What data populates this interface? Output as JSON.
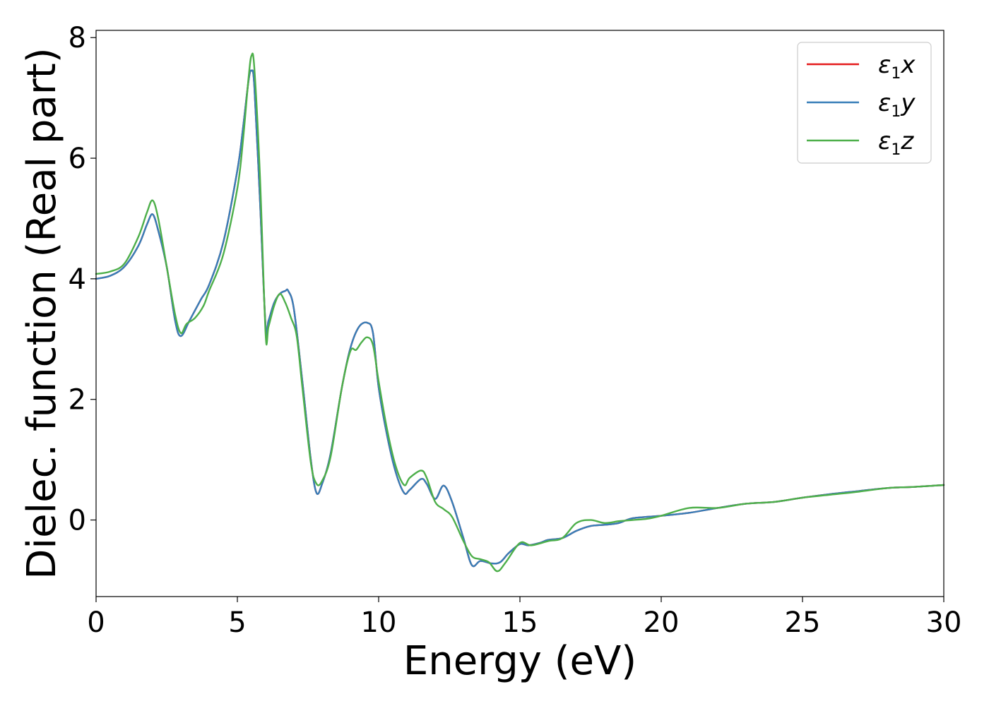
{
  "chart_data": {
    "type": "line",
    "title": "",
    "xlabel": "Energy (eV)",
    "ylabel": "Dielec. function (Real part)",
    "xlim": [
      0,
      30
    ],
    "ylim": [
      -1.27,
      8.12
    ],
    "xticks": [
      0,
      5,
      10,
      15,
      20,
      25,
      30
    ],
    "yticks": [
      0,
      2,
      4,
      6,
      8
    ],
    "xtick_labels": [
      "0",
      "5",
      "10",
      "15",
      "20",
      "25",
      "30"
    ],
    "ytick_labels": [
      "0",
      "2",
      "4",
      "6",
      "8"
    ],
    "grid": false,
    "legend_position": "top-right",
    "series": [
      {
        "name": "ε₁x",
        "legend_main": "ε",
        "legend_sub": "1",
        "legend_suffix": "x",
        "color": "#e41a1c",
        "x": [
          0,
          0.5,
          1.0,
          1.5,
          1.8,
          2.0,
          2.2,
          2.5,
          2.8,
          3.0,
          3.3,
          3.7,
          4.0,
          4.5,
          5.0,
          5.2,
          5.4,
          5.5,
          5.6,
          5.8,
          6.0,
          6.1,
          6.3,
          6.5,
          6.7,
          6.8,
          7.0,
          7.3,
          7.6,
          7.8,
          8.0,
          8.3,
          8.7,
          9.0,
          9.3,
          9.6,
          9.8,
          10.0,
          10.3,
          10.6,
          10.9,
          11.1,
          11.5,
          11.7,
          12.0,
          12.3,
          12.6,
          13.0,
          13.3,
          13.6,
          14.0,
          14.3,
          14.6,
          15.0,
          15.3,
          15.7,
          16.0,
          16.5,
          17.0,
          17.5,
          18.0,
          18.5,
          19.0,
          20.0,
          21.0,
          22.0,
          23.0,
          24.0,
          25.0,
          26.0,
          27.0,
          28.0,
          29.0,
          30.0
        ],
        "y": [
          4.0,
          4.05,
          4.2,
          4.55,
          4.9,
          5.07,
          4.8,
          4.2,
          3.3,
          3.05,
          3.3,
          3.65,
          3.9,
          4.6,
          5.8,
          6.5,
          7.3,
          7.45,
          7.2,
          5.3,
          3.2,
          3.3,
          3.6,
          3.75,
          3.8,
          3.8,
          3.5,
          2.3,
          1.0,
          0.45,
          0.6,
          1.1,
          2.2,
          2.85,
          3.2,
          3.27,
          3.1,
          2.2,
          1.4,
          0.8,
          0.45,
          0.5,
          0.68,
          0.6,
          0.35,
          0.57,
          0.3,
          -0.3,
          -0.75,
          -0.68,
          -0.72,
          -0.7,
          -0.55,
          -0.4,
          -0.42,
          -0.38,
          -0.33,
          -0.3,
          -0.18,
          -0.1,
          -0.08,
          -0.05,
          0.03,
          0.07,
          0.12,
          0.2,
          0.27,
          0.3,
          0.37,
          0.43,
          0.48,
          0.53,
          0.55,
          0.58
        ]
      },
      {
        "name": "ε₁y",
        "legend_main": "ε",
        "legend_sub": "1",
        "legend_suffix": "y",
        "color": "#377eb8",
        "x": [
          0,
          0.5,
          1.0,
          1.5,
          1.8,
          2.0,
          2.2,
          2.5,
          2.8,
          3.0,
          3.3,
          3.7,
          4.0,
          4.5,
          5.0,
          5.2,
          5.4,
          5.5,
          5.6,
          5.8,
          6.0,
          6.1,
          6.3,
          6.5,
          6.7,
          6.8,
          7.0,
          7.3,
          7.6,
          7.8,
          8.0,
          8.3,
          8.7,
          9.0,
          9.3,
          9.6,
          9.8,
          10.0,
          10.3,
          10.6,
          10.9,
          11.1,
          11.5,
          11.7,
          12.0,
          12.3,
          12.6,
          13.0,
          13.3,
          13.6,
          14.0,
          14.3,
          14.6,
          15.0,
          15.3,
          15.7,
          16.0,
          16.5,
          17.0,
          17.5,
          18.0,
          18.5,
          19.0,
          20.0,
          21.0,
          22.0,
          23.0,
          24.0,
          25.0,
          26.0,
          27.0,
          28.0,
          29.0,
          30.0
        ],
        "y": [
          4.0,
          4.05,
          4.2,
          4.55,
          4.9,
          5.07,
          4.8,
          4.2,
          3.3,
          3.05,
          3.3,
          3.65,
          3.9,
          4.6,
          5.8,
          6.5,
          7.3,
          7.45,
          7.2,
          5.3,
          3.2,
          3.3,
          3.6,
          3.75,
          3.8,
          3.8,
          3.5,
          2.3,
          1.0,
          0.45,
          0.6,
          1.1,
          2.2,
          2.85,
          3.2,
          3.27,
          3.1,
          2.2,
          1.4,
          0.8,
          0.45,
          0.5,
          0.68,
          0.6,
          0.35,
          0.57,
          0.3,
          -0.3,
          -0.75,
          -0.68,
          -0.72,
          -0.7,
          -0.55,
          -0.4,
          -0.42,
          -0.38,
          -0.33,
          -0.3,
          -0.18,
          -0.1,
          -0.08,
          -0.05,
          0.03,
          0.07,
          0.12,
          0.2,
          0.27,
          0.3,
          0.37,
          0.43,
          0.48,
          0.53,
          0.55,
          0.58
        ]
      },
      {
        "name": "ε₁z",
        "legend_main": "ε",
        "legend_sub": "1",
        "legend_suffix": "z",
        "color": "#4daf4a",
        "x": [
          0,
          0.5,
          1.0,
          1.5,
          1.8,
          2.0,
          2.2,
          2.5,
          2.8,
          3.0,
          3.2,
          3.5,
          3.8,
          4.0,
          4.5,
          5.0,
          5.2,
          5.4,
          5.5,
          5.6,
          5.8,
          6.0,
          6.1,
          6.3,
          6.5,
          6.7,
          6.9,
          7.1,
          7.3,
          7.6,
          7.8,
          8.0,
          8.3,
          8.7,
          9.0,
          9.2,
          9.4,
          9.6,
          9.8,
          10.0,
          10.3,
          10.6,
          10.9,
          11.1,
          11.5,
          11.7,
          12.0,
          12.3,
          12.6,
          13.0,
          13.3,
          13.6,
          13.9,
          14.2,
          14.5,
          15.0,
          15.4,
          16.0,
          16.5,
          17.0,
          17.5,
          18.0,
          18.5,
          19.0,
          19.5,
          20.0,
          21.0,
          22.0,
          23.0,
          24.0,
          25.0,
          26.0,
          27.0,
          28.0,
          29.0,
          30.0
        ],
        "y": [
          4.08,
          4.12,
          4.25,
          4.7,
          5.1,
          5.3,
          5.0,
          4.2,
          3.4,
          3.1,
          3.25,
          3.35,
          3.55,
          3.8,
          4.4,
          5.5,
          6.3,
          7.35,
          7.7,
          7.5,
          5.7,
          3.08,
          3.2,
          3.55,
          3.75,
          3.6,
          3.35,
          3.05,
          2.2,
          0.95,
          0.6,
          0.65,
          1.05,
          2.2,
          2.8,
          2.82,
          2.95,
          3.03,
          2.9,
          2.3,
          1.5,
          0.9,
          0.58,
          0.7,
          0.82,
          0.7,
          0.3,
          0.18,
          0.05,
          -0.35,
          -0.6,
          -0.65,
          -0.7,
          -0.85,
          -0.7,
          -0.38,
          -0.42,
          -0.35,
          -0.3,
          -0.05,
          0.0,
          -0.05,
          -0.02,
          0.0,
          0.02,
          0.07,
          0.2,
          0.2,
          0.27,
          0.3,
          0.37,
          0.42,
          0.47,
          0.53,
          0.55,
          0.58
        ]
      }
    ]
  }
}
